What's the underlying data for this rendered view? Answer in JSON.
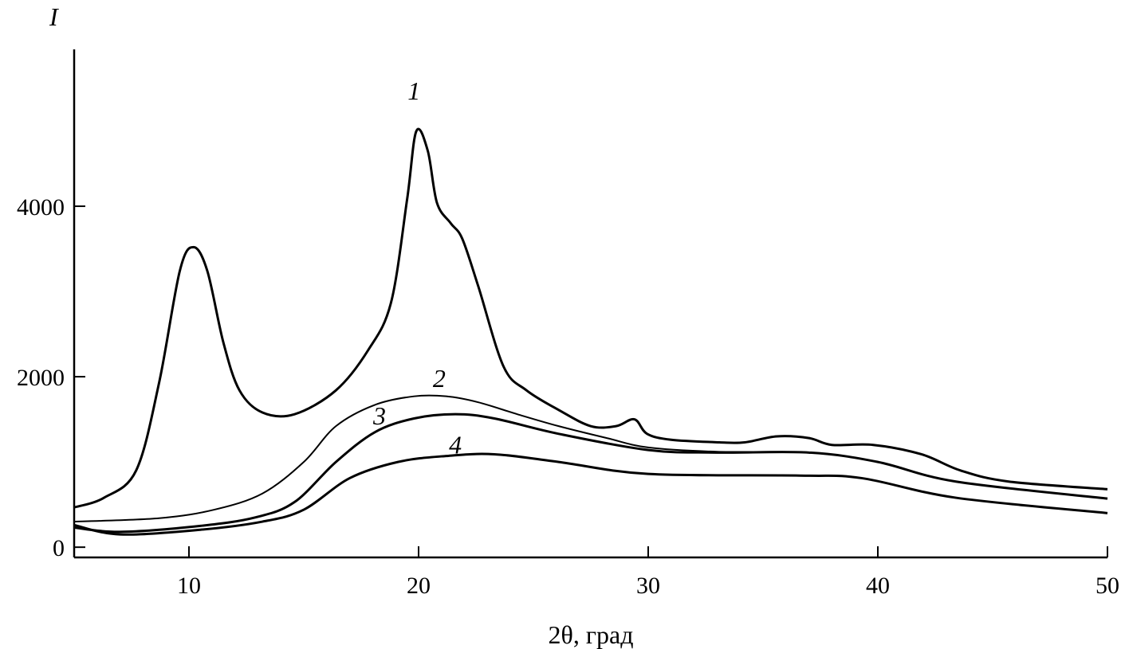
{
  "chart_data": {
    "type": "line",
    "xlabel": "2θ, град",
    "ylabel": "I",
    "xlim": [
      5,
      50
    ],
    "ylim": [
      -120,
      5840
    ],
    "xticks": [
      10,
      20,
      30,
      40,
      50
    ],
    "yticks": [
      0,
      2000,
      4000
    ],
    "grid": false,
    "line_color": "#000000",
    "series": [
      {
        "name": "1",
        "label_at": [
          19.8,
          5250
        ],
        "x": [
          5,
          6.3,
          7.7,
          8.7,
          9.6,
          10.2,
          10.8,
          11.5,
          12.2,
          13.2,
          14.6,
          16.4,
          17.8,
          18.8,
          19.5,
          19.9,
          20.4,
          20.8,
          21.4,
          21.9,
          22.6,
          23.7,
          24.7,
          26.1,
          27.5,
          28.6,
          29.4,
          29.95,
          31,
          33.1,
          34.2,
          35.6,
          37,
          38,
          39.8,
          41.9,
          43.6,
          45.7,
          50
        ],
        "y": [
          467,
          580,
          900,
          1930,
          3240,
          3520,
          3240,
          2400,
          1840,
          1580,
          1560,
          1840,
          2310,
          2870,
          4080,
          4880,
          4650,
          4040,
          3800,
          3620,
          3060,
          2120,
          1840,
          1610,
          1420,
          1420,
          1500,
          1330,
          1260,
          1230,
          1230,
          1300,
          1280,
          1200,
          1200,
          1090,
          900,
          770,
          680
        ]
      },
      {
        "name": "2",
        "label_at": [
          20.9,
          1880
        ],
        "x": [
          5,
          8.7,
          11.1,
          13.2,
          15,
          16.4,
          18.1,
          19.8,
          21.2,
          22.6,
          24.3,
          26.1,
          28.2,
          30,
          33,
          37,
          40,
          43.4,
          50
        ],
        "y": [
          300,
          340,
          440,
          630,
          1000,
          1420,
          1670,
          1770,
          1770,
          1700,
          1560,
          1420,
          1280,
          1170,
          1120,
          1110,
          1000,
          770,
          570
        ]
      },
      {
        "name": "3",
        "label_at": [
          18.3,
          1440
        ],
        "x": [
          5,
          7,
          10.5,
          12.9,
          14.6,
          16.4,
          18.1,
          19.8,
          21.6,
          23.3,
          26.1,
          30,
          33,
          37,
          40,
          43.4,
          50
        ],
        "y": [
          230,
          180,
          250,
          350,
          530,
          1000,
          1350,
          1510,
          1560,
          1510,
          1330,
          1140,
          1110,
          1110,
          1000,
          770,
          570
        ]
      },
      {
        "name": "4",
        "label_at": [
          21.6,
          1100
        ],
        "x": [
          5,
          7,
          10.5,
          13.2,
          15,
          17,
          19.1,
          21.2,
          23.3,
          26.1,
          30,
          36.6,
          39.3,
          43.4,
          50
        ],
        "y": [
          260,
          150,
          205,
          300,
          440,
          810,
          1000,
          1070,
          1090,
          1000,
          860,
          840,
          810,
          580,
          400
        ]
      }
    ]
  }
}
